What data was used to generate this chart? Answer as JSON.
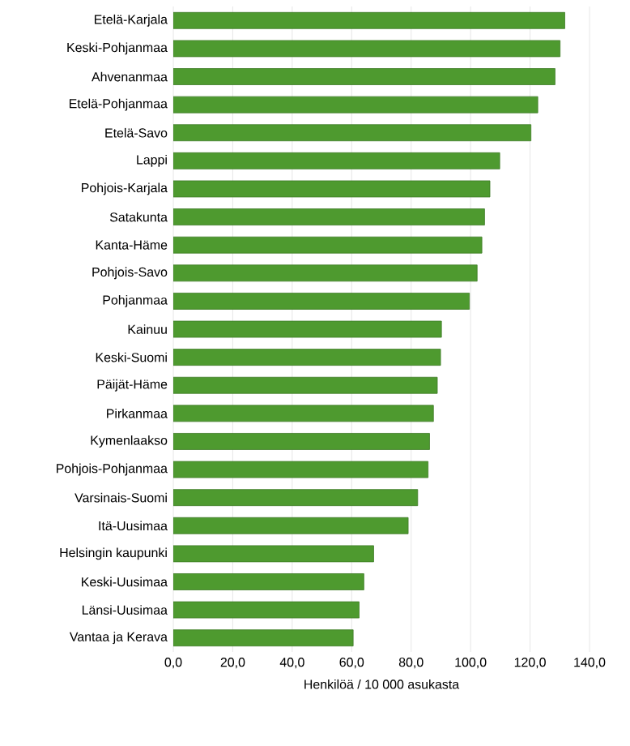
{
  "chart_data": {
    "type": "bar",
    "orientation": "horizontal",
    "xlabel": "Henkilöä / 10 000 asukasta",
    "categories": [
      "Etelä-Karjala",
      "Keski-Pohjanmaa",
      "Ahvenanmaa",
      "Etelä-Pohjanmaa",
      "Etelä-Savo",
      "Lappi",
      "Pohjois-Karjala",
      "Satakunta",
      "Kanta-Häme",
      "Pohjois-Savo",
      "Pohjanmaa",
      "Kainuu",
      "Keski-Suomi",
      "Päijät-Häme",
      "Pirkanmaa",
      "Kymenlaakso",
      "Pohjois-Pohjanmaa",
      "Varsinais-Suomi",
      "Itä-Uusimaa",
      "Helsingin kaupunki",
      "Keski-Uusimaa",
      "Länsi-Uusimaa",
      "Vantaa ja Kerava"
    ],
    "values": [
      131.7,
      130.1,
      128.4,
      122.6,
      120.3,
      109.8,
      106.5,
      104.7,
      103.8,
      102.2,
      99.6,
      90.2,
      89.9,
      88.8,
      87.5,
      86.2,
      85.7,
      82.2,
      79.0,
      67.4,
      64.1,
      62.5,
      60.5
    ],
    "color": "#4e9a2f",
    "xlim": [
      0,
      140
    ],
    "xticks": [
      {
        "value": 0,
        "label": "0,0"
      },
      {
        "value": 20,
        "label": "20,0"
      },
      {
        "value": 40,
        "label": "40,0"
      },
      {
        "value": 60,
        "label": "60,0"
      },
      {
        "value": 80,
        "label": "80,0"
      },
      {
        "value": 100,
        "label": "100,0"
      },
      {
        "value": 120,
        "label": "120,0"
      },
      {
        "value": 140,
        "label": "140,0"
      }
    ],
    "grid": "x"
  }
}
